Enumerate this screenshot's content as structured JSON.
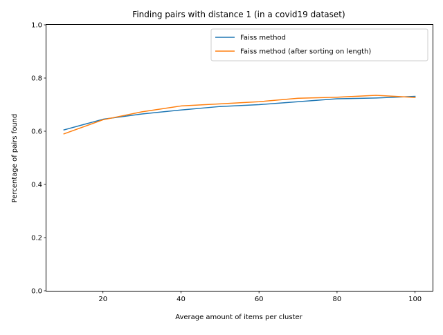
{
  "chart_data": {
    "type": "line",
    "title": "Finding pairs with distance 1 (in a covid19 dataset)",
    "xlabel": "Average amount of items per cluster",
    "ylabel": "Percentage of pairs found",
    "xlim": [
      5.5,
      104.5
    ],
    "ylim": [
      0,
      1.0
    ],
    "xticks": [
      20,
      40,
      60,
      80,
      100
    ],
    "yticks": [
      0.0,
      0.2,
      0.4,
      0.6,
      0.8,
      1.0
    ],
    "xtick_labels": [
      "20",
      "40",
      "60",
      "80",
      "100"
    ],
    "ytick_labels": [
      "0.0",
      "0.2",
      "0.4",
      "0.6",
      "0.8",
      "1.0"
    ],
    "grid": false,
    "legend_position": "top-right",
    "x": [
      10,
      20,
      30,
      40,
      50,
      60,
      70,
      80,
      90,
      100
    ],
    "series": [
      {
        "name": "Faiss method",
        "color": "#1f77b4",
        "values": [
          0.605,
          0.645,
          0.665,
          0.68,
          0.693,
          0.7,
          0.711,
          0.722,
          0.725,
          0.731
        ]
      },
      {
        "name": "Faiss method (after sorting on length)",
        "color": "#ff7f0e",
        "values": [
          0.59,
          0.643,
          0.673,
          0.695,
          0.703,
          0.711,
          0.724,
          0.728,
          0.735,
          0.727
        ]
      }
    ]
  }
}
